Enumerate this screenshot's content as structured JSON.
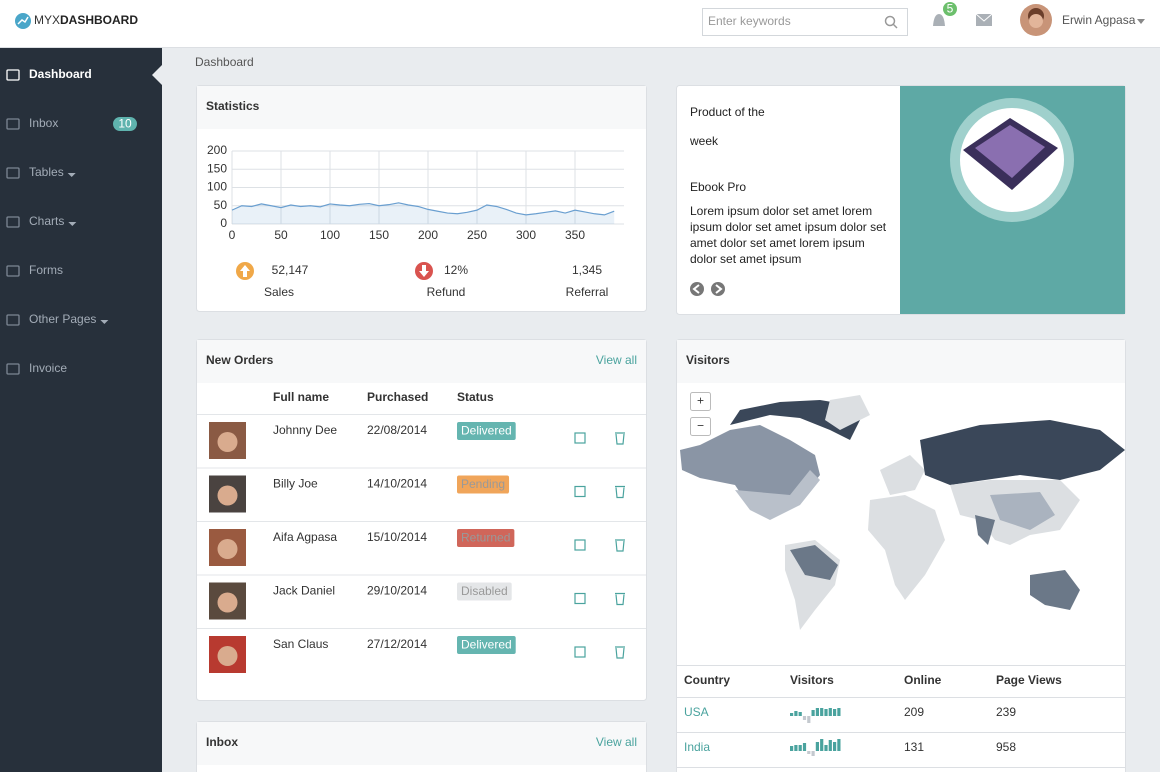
{
  "header": {
    "logo_light": "MYX",
    "logo_bold": "DASHBOARD",
    "search_placeholder": "Enter keywords",
    "notification_count": "5",
    "user_name": "Erwin Agpasa"
  },
  "sidebar": {
    "items": [
      {
        "label": "Dashboard"
      },
      {
        "label": "Inbox",
        "badge": "10"
      },
      {
        "label": "Tables",
        "dropdown": true
      },
      {
        "label": "Charts",
        "dropdown": true
      },
      {
        "label": "Forms"
      },
      {
        "label": "Other Pages",
        "dropdown": true
      },
      {
        "label": "Invoice"
      }
    ]
  },
  "page_title": "Dashboard",
  "statistics": {
    "title": "Statistics",
    "chart": {
      "type": "line",
      "color": "#6a9fd0",
      "x": [
        0,
        10,
        20,
        30,
        40,
        50,
        60,
        70,
        80,
        90,
        100,
        110,
        120,
        130,
        140,
        150,
        160,
        170,
        180,
        190,
        200,
        210,
        220,
        230,
        240,
        250,
        260,
        270,
        280,
        290,
        300,
        310,
        320,
        330,
        340,
        350,
        360,
        370,
        380,
        390
      ],
      "values": [
        38,
        50,
        48,
        55,
        50,
        45,
        52,
        48,
        50,
        47,
        55,
        52,
        50,
        54,
        56,
        50,
        53,
        58,
        52,
        48,
        40,
        35,
        30,
        28,
        32,
        38,
        52,
        48,
        40,
        30,
        25,
        28,
        32,
        36,
        30,
        38,
        33,
        28,
        25,
        35
      ],
      "xlim": [
        0,
        400
      ],
      "ylim": [
        0,
        200
      ],
      "xticks": [
        0,
        50,
        100,
        150,
        200,
        250,
        300,
        350
      ],
      "yticks": [
        0,
        50,
        100,
        150,
        200
      ],
      "grid": true
    },
    "stats": [
      {
        "value": "52,147",
        "label": "Sales"
      },
      {
        "value": "12%",
        "label": "Refund"
      },
      {
        "value": "1,345",
        "label": "Referral"
      }
    ]
  },
  "product": {
    "heading_line1": "Product of the",
    "heading_line2": "week",
    "name": "Ebook Pro",
    "description": "Lorem ipsum dolor set amet lorem ipsum dolor set amet ipsum dolor set amet dolor set amet lorem ipsum dolor set amet ipsum"
  },
  "orders": {
    "title": "New Orders",
    "view_all": "View all",
    "columns": [
      "Full name",
      "Purchased",
      "Status"
    ],
    "rows": [
      {
        "name": "Johnny Dee",
        "date": "22/08/2014",
        "status": "Delivered",
        "status_color": "#65b5b0"
      },
      {
        "name": "Billy Joe",
        "date": "14/10/2014",
        "status": "Pending",
        "status_color": "#f0a55a"
      },
      {
        "name": "Aifa Agpasa",
        "date": "15/10/2014",
        "status": "Returned",
        "status_color": "#d0665a"
      },
      {
        "name": "Jack Daniel",
        "date": "29/10/2014",
        "status": "Disabled",
        "status_color": "#e4e6e8"
      },
      {
        "name": "San Claus",
        "date": "27/12/2014",
        "status": "Delivered",
        "status_color": "#65b5b0"
      }
    ]
  },
  "inbox": {
    "title": "Inbox",
    "view_all": "View all"
  },
  "visitors": {
    "title": "Visitors",
    "zoom_in": "+",
    "zoom_out": "−",
    "columns": [
      "Country",
      "Visitors",
      "Online",
      "Page Views"
    ],
    "rows": [
      {
        "country": "USA",
        "trend": [
          3,
          5,
          4,
          -4,
          -7,
          6,
          8,
          8,
          7,
          8,
          7,
          8
        ],
        "online": 209,
        "page_views": 239
      },
      {
        "country": "India",
        "trend": [
          5,
          6,
          6,
          8,
          -3,
          -5,
          9,
          12,
          6,
          11,
          9,
          12
        ],
        "online": 131,
        "page_views": 958
      }
    ]
  }
}
